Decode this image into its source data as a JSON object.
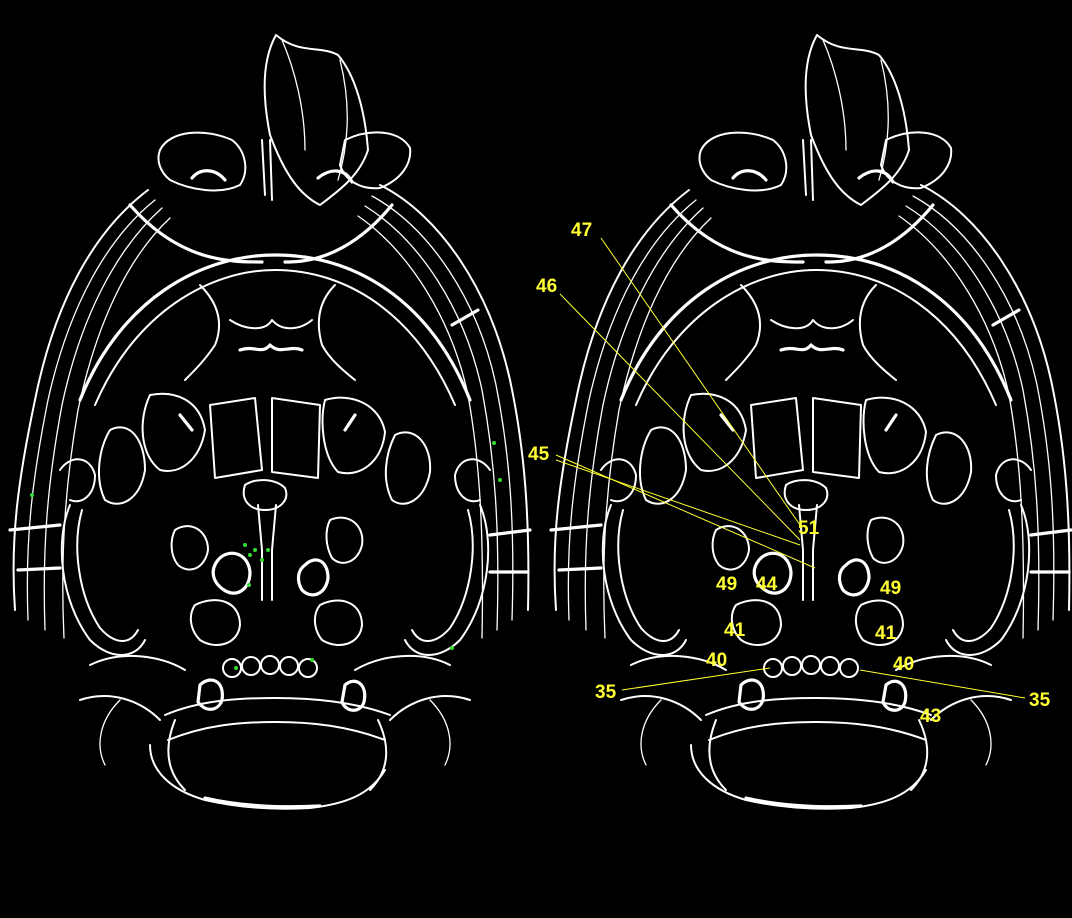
{
  "figure": {
    "background": "#000000",
    "outline_color": "#ffffff",
    "label_color": "#ffff33",
    "marker_color": "#33dd33"
  },
  "labels": [
    {
      "id": "47",
      "text": "47"
    },
    {
      "id": "46",
      "text": "46"
    },
    {
      "id": "45",
      "text": "45"
    },
    {
      "id": "51",
      "text": "51"
    },
    {
      "id": "49-left",
      "text": "49"
    },
    {
      "id": "44",
      "text": "44"
    },
    {
      "id": "49-right",
      "text": "49"
    },
    {
      "id": "41-left",
      "text": "41"
    },
    {
      "id": "41-right",
      "text": "41"
    },
    {
      "id": "40-left",
      "text": "40"
    },
    {
      "id": "40-right",
      "text": "40"
    },
    {
      "id": "35-left",
      "text": "35"
    },
    {
      "id": "35-right",
      "text": "35"
    },
    {
      "id": "43",
      "text": "43"
    }
  ]
}
